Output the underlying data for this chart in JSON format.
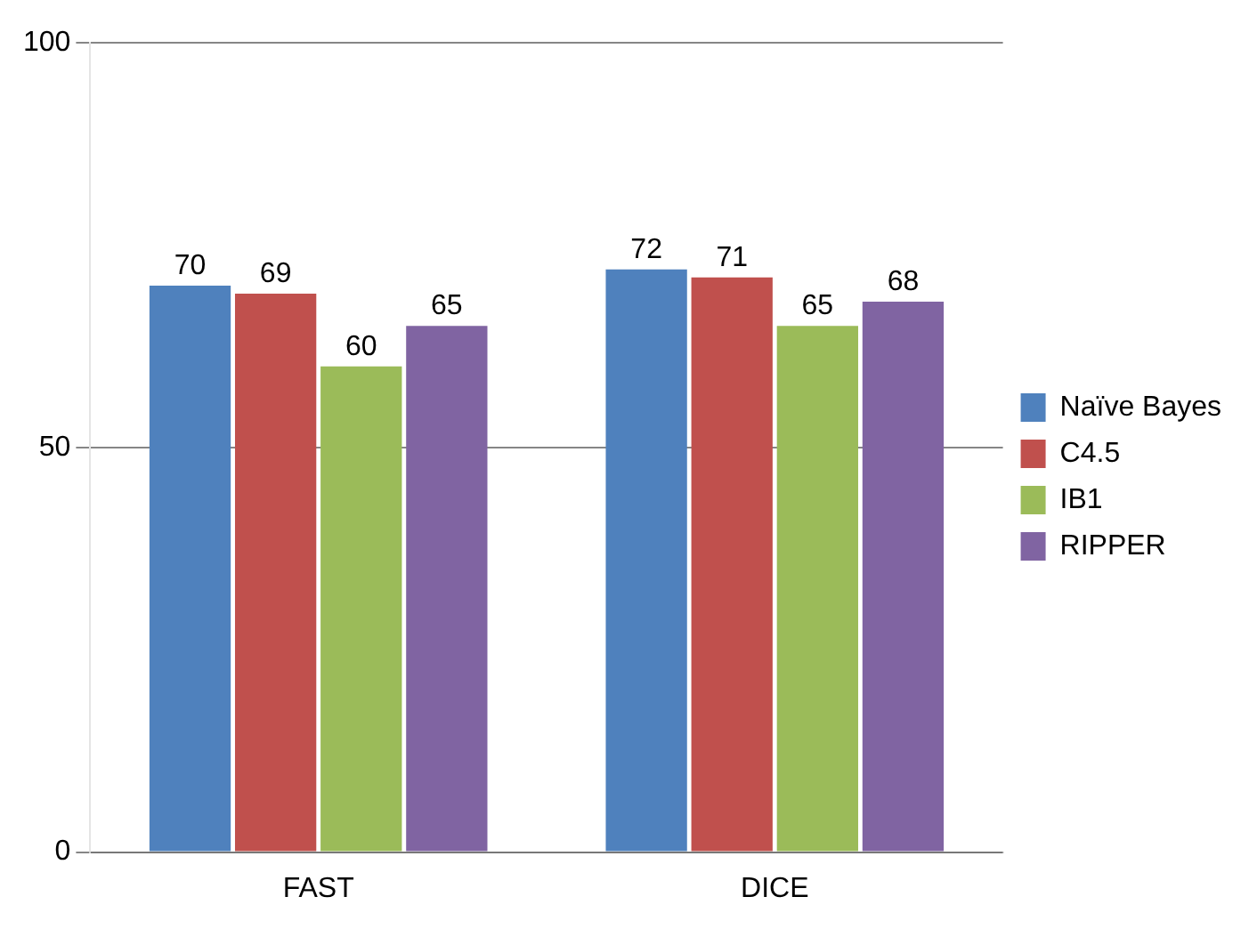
{
  "chart_data": {
    "type": "bar",
    "categories": [
      "FAST",
      "DICE"
    ],
    "series": [
      {
        "name": "Naïve Bayes",
        "color": "#4f81bd",
        "values": [
          70,
          72
        ]
      },
      {
        "name": "C4.5",
        "color": "#c0504d",
        "values": [
          69,
          71
        ]
      },
      {
        "name": "IB1",
        "color": "#9bbb59",
        "values": [
          60,
          65
        ]
      },
      {
        "name": "RIPPER",
        "color": "#8064a2",
        "values": [
          65,
          68
        ]
      }
    ],
    "ylim": [
      0,
      100
    ],
    "yticks": [
      0,
      50,
      100
    ],
    "grid": "y",
    "legend": "right",
    "data_labels": true
  }
}
